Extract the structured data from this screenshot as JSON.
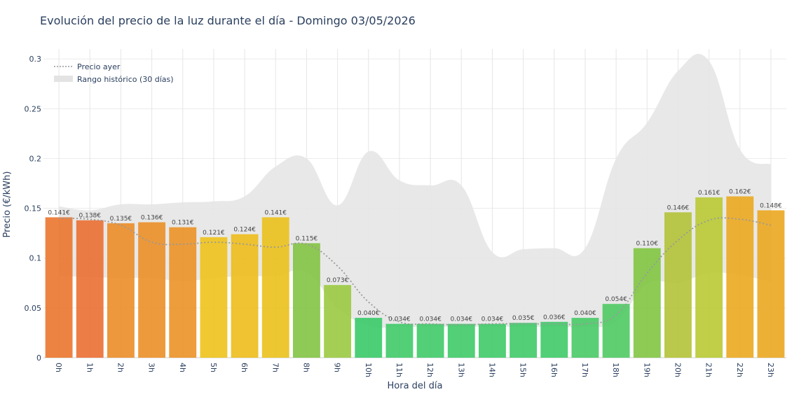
{
  "chart_data": {
    "type": "bar",
    "title": "Evolución del precio de la luz durante el día - Domingo 03/05/2026",
    "xlabel": "Hora del día",
    "ylabel": "Precio (€/kWh)",
    "ylim": [
      0,
      0.31
    ],
    "yticks": [
      "0",
      "0.05",
      "0.1",
      "0.15",
      "0.2",
      "0.25",
      "0.3"
    ],
    "categories": [
      "0h",
      "1h",
      "2h",
      "3h",
      "4h",
      "5h",
      "6h",
      "7h",
      "8h",
      "9h",
      "10h",
      "11h",
      "12h",
      "13h",
      "14h",
      "15h",
      "16h",
      "17h",
      "18h",
      "19h",
      "20h",
      "21h",
      "22h",
      "23h"
    ],
    "values": [
      0.141,
      0.138,
      0.135,
      0.136,
      0.131,
      0.121,
      0.124,
      0.141,
      0.115,
      0.073,
      0.04,
      0.034,
      0.034,
      0.034,
      0.034,
      0.035,
      0.036,
      0.04,
      0.054,
      0.11,
      0.146,
      0.161,
      0.162,
      0.148
    ],
    "data_labels": [
      "0.141€",
      "0.138€",
      "0.135€",
      "0.136€",
      "0.131€",
      "0.121€",
      "0.124€",
      "0.141€",
      "0.115€",
      "0.073€",
      "0.040€",
      "0.034€",
      "0.034€",
      "0.034€",
      "0.034€",
      "0.035€",
      "0.036€",
      "0.040€",
      "0.054€",
      "0.110€",
      "0.146€",
      "0.161€",
      "0.162€",
      "0.148€"
    ],
    "bar_colors": [
      "#ea7228",
      "#eb6b2e",
      "#ea8a22",
      "#ea8c22",
      "#ea8f20",
      "#eec014",
      "#edbb15",
      "#ebbf14",
      "#80c23f",
      "#98c83c",
      "#33c864",
      "#3ac864",
      "#3ac864",
      "#3ac864",
      "#3ac864",
      "#3ac864",
      "#3ac864",
      "#43c862",
      "#4ac85e",
      "#7dc43e",
      "#b0c232",
      "#b7c82e",
      "#eba61a",
      "#eba51a"
    ],
    "series": [
      {
        "name": "Precio ayer",
        "style": "dotted",
        "color": "#999999",
        "values": [
          0.14,
          0.139,
          0.133,
          0.116,
          0.114,
          0.116,
          0.114,
          0.111,
          0.114,
          0.092,
          0.056,
          0.036,
          0.034,
          0.033,
          0.034,
          0.034,
          0.034,
          0.034,
          0.043,
          0.085,
          0.118,
          0.138,
          0.139,
          0.133
        ]
      },
      {
        "name": "Rango histórico (30 días)",
        "style": "band",
        "color": "#e6e6e6",
        "upper": [
          0.152,
          0.148,
          0.154,
          0.154,
          0.156,
          0.157,
          0.162,
          0.192,
          0.2,
          0.153,
          0.207,
          0.178,
          0.173,
          0.173,
          0.106,
          0.109,
          0.11,
          0.11,
          0.2,
          0.236,
          0.288,
          0.298,
          0.209,
          0.194
        ],
        "lower": [
          0.082,
          0.081,
          0.08,
          0.08,
          0.077,
          0.08,
          0.082,
          0.082,
          0.086,
          0.05,
          0.032,
          0.031,
          0.031,
          0.031,
          0.031,
          0.031,
          0.031,
          0.031,
          0.036,
          0.074,
          0.075,
          0.085,
          0.083,
          0.076
        ]
      }
    ],
    "legend_position": "top-left",
    "grid": true
  }
}
